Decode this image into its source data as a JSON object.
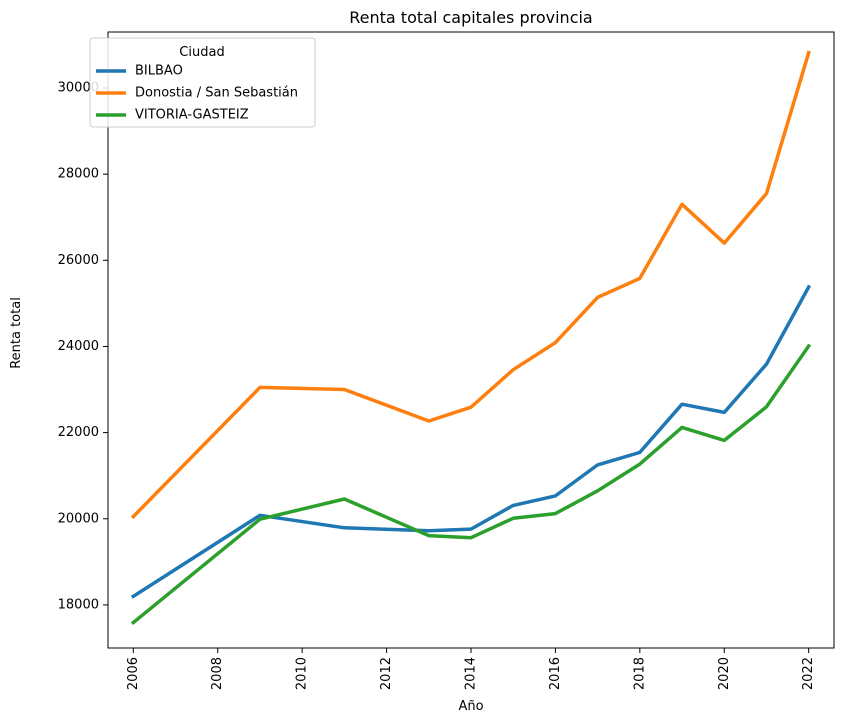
{
  "chart_data": {
    "type": "line",
    "title": "Renta total capitales provincia",
    "xlabel": "Año",
    "ylabel": "Renta total",
    "xlim": [
      2005.4,
      2022.6
    ],
    "ylim": [
      17000,
      31300
    ],
    "xticks": [
      2006,
      2008,
      2010,
      2012,
      2014,
      2016,
      2018,
      2020,
      2022
    ],
    "yticks": [
      18000,
      20000,
      22000,
      24000,
      26000,
      28000,
      30000
    ],
    "grid": false,
    "legend": {
      "title": "Ciudad",
      "placement": "top-left"
    },
    "series": [
      {
        "name": "BILBAO",
        "color": "#1f77b4",
        "x": [
          2006,
          2009,
          2011,
          2013,
          2014,
          2015,
          2016,
          2017,
          2018,
          2019,
          2020,
          2021,
          2022
        ],
        "y": [
          18200,
          20080,
          19790,
          19720,
          19760,
          20310,
          20530,
          21250,
          21540,
          22660,
          22470,
          23590,
          25380
        ]
      },
      {
        "name": "Donostia / San Sebastián",
        "color": "#ff7f0e",
        "x": [
          2006,
          2009,
          2011,
          2013,
          2014,
          2015,
          2016,
          2017,
          2018,
          2019,
          2020,
          2021,
          2022
        ],
        "y": [
          20050,
          23050,
          23000,
          22270,
          22590,
          23460,
          24090,
          25140,
          25580,
          27300,
          26400,
          27550,
          30820
        ]
      },
      {
        "name": "VITORIA-GASTEIZ",
        "color": "#2ca02c",
        "x": [
          2006,
          2009,
          2011,
          2013,
          2014,
          2015,
          2016,
          2017,
          2018,
          2019,
          2020,
          2021,
          2022
        ],
        "y": [
          17590,
          19990,
          20460,
          19610,
          19560,
          20010,
          20120,
          20650,
          21270,
          22120,
          21820,
          22600,
          24010
        ]
      }
    ]
  }
}
